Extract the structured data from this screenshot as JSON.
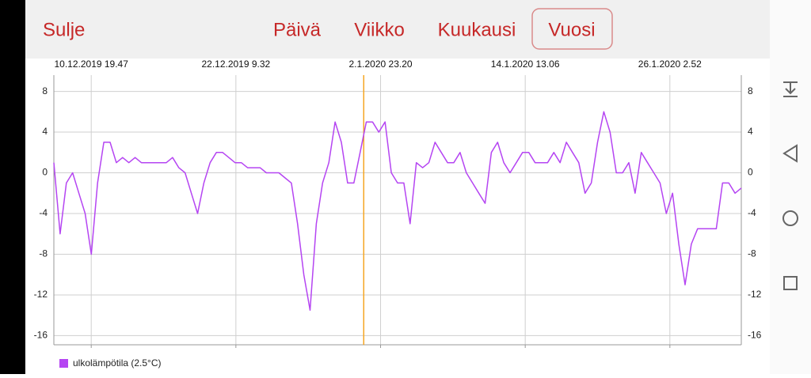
{
  "toolbar": {
    "close": "Sulje",
    "tabs": [
      "Päivä",
      "Viikko",
      "Kuukausi",
      "Vuosi"
    ],
    "selected": 3
  },
  "chart_data": {
    "type": "line",
    "x": [
      "2019-12-07T20:00",
      "2019-12-08T08:00",
      "2019-12-08T20:00",
      "2019-12-09T08:00",
      "2019-12-09T20:00",
      "2019-12-10T08:00",
      "2019-12-10T20:00",
      "2019-12-11T08:00",
      "2019-12-11T20:00",
      "2019-12-12T08:00",
      "2019-12-12T20:00",
      "2019-12-13T08:00",
      "2019-12-13T20:00",
      "2019-12-14T08:00",
      "2019-12-14T20:00",
      "2019-12-15T08:00",
      "2019-12-15T20:00",
      "2019-12-16T08:00",
      "2019-12-16T20:00",
      "2019-12-17T08:00",
      "2019-12-17T20:00",
      "2019-12-18T08:00",
      "2019-12-18T20:00",
      "2019-12-19T08:00",
      "2019-12-19T20:00",
      "2019-12-20T08:00",
      "2019-12-20T20:00",
      "2019-12-21T08:00",
      "2019-12-21T20:00",
      "2019-12-22T08:00",
      "2019-12-22T20:00",
      "2019-12-23T08:00",
      "2019-12-23T20:00",
      "2019-12-24T08:00",
      "2019-12-24T20:00",
      "2019-12-25T08:00",
      "2019-12-25T20:00",
      "2019-12-26T08:00",
      "2019-12-26T20:00",
      "2019-12-27T08:00",
      "2019-12-27T20:00",
      "2019-12-28T08:00",
      "2019-12-28T20:00",
      "2019-12-29T08:00",
      "2019-12-29T20:00",
      "2019-12-30T08:00",
      "2019-12-30T20:00",
      "2019-12-31T08:00",
      "2019-12-31T20:00",
      "2020-01-01T08:00",
      "2020-01-01T20:00",
      "2020-01-02T08:00",
      "2020-01-02T20:00",
      "2020-01-03T08:00",
      "2020-01-03T20:00",
      "2020-01-04T08:00",
      "2020-01-04T20:00",
      "2020-01-05T08:00",
      "2020-01-05T20:00",
      "2020-01-06T08:00",
      "2020-01-06T20:00",
      "2020-01-07T08:00",
      "2020-01-07T20:00",
      "2020-01-08T08:00",
      "2020-01-08T20:00",
      "2020-01-09T08:00",
      "2020-01-09T20:00",
      "2020-01-10T08:00",
      "2020-01-10T20:00",
      "2020-01-11T08:00",
      "2020-01-11T20:00",
      "2020-01-12T08:00",
      "2020-01-12T20:00",
      "2020-01-13T08:00",
      "2020-01-13T20:00",
      "2020-01-14T08:00",
      "2020-01-14T20:00",
      "2020-01-15T08:00",
      "2020-01-15T20:00",
      "2020-01-16T08:00",
      "2020-01-16T20:00",
      "2020-01-17T08:00",
      "2020-01-17T20:00",
      "2020-01-18T08:00",
      "2020-01-18T20:00",
      "2020-01-19T08:00",
      "2020-01-19T20:00",
      "2020-01-20T08:00",
      "2020-01-20T20:00",
      "2020-01-21T08:00",
      "2020-01-21T20:00",
      "2020-01-22T08:00",
      "2020-01-22T20:00",
      "2020-01-23T08:00",
      "2020-01-23T20:00",
      "2020-01-24T08:00",
      "2020-01-24T20:00",
      "2020-01-25T08:00",
      "2020-01-25T20:00",
      "2020-01-26T08:00",
      "2020-01-26T20:00",
      "2020-01-27T08:00",
      "2020-01-27T20:00",
      "2020-01-28T08:00",
      "2020-01-28T20:00",
      "2020-01-29T08:00",
      "2020-01-29T20:00",
      "2020-01-30T08:00",
      "2020-01-30T20:00",
      "2020-01-31T08:00",
      "2020-01-31T20:00"
    ],
    "series": [
      {
        "name": "ulkolämpötila (2.5°C)",
        "color": "#b545f2",
        "values": [
          1,
          -6,
          -1,
          0,
          -2,
          -4,
          -8,
          -1,
          3,
          3,
          1,
          1.5,
          1,
          1.5,
          1,
          1,
          1,
          1,
          1,
          1.5,
          0.5,
          0,
          -2,
          -4,
          -1,
          1,
          2,
          2,
          1.5,
          1,
          1,
          0.5,
          0.5,
          0.5,
          0,
          0,
          0,
          -0.5,
          -1,
          -5,
          -10,
          -13.5,
          -5,
          -1,
          1,
          5,
          3,
          -1,
          -1,
          2,
          5,
          5,
          4,
          5,
          0,
          -1,
          -1,
          -5,
          1,
          0.5,
          1,
          3,
          2,
          1,
          1,
          2,
          0,
          -1,
          -2,
          -3,
          2,
          3,
          1,
          0,
          1,
          2,
          2,
          1,
          1,
          1,
          2,
          1,
          3,
          2,
          1,
          -2,
          -1,
          3,
          6,
          4,
          0,
          0,
          1,
          -2,
          2,
          1,
          0,
          -1,
          -4,
          -2,
          -7,
          -11,
          -7,
          -5.5,
          -5.5,
          -5.5,
          -5.5,
          -1,
          -1,
          -2,
          -1.5
        ]
      }
    ],
    "xlim": [
      "2019-12-07T20:00",
      "2020-01-31T20:00"
    ],
    "xticks": [
      {
        "value": "2019-12-10T19:47",
        "label": "10.12.2019 19.47"
      },
      {
        "value": "2019-12-22T09:32",
        "label": "22.12.2019 9.32"
      },
      {
        "value": "2020-01-02T23:20",
        "label": "2.1.2020 23.20"
      },
      {
        "value": "2020-01-14T13:06",
        "label": "14.1.2020 13.06"
      },
      {
        "value": "2020-01-26T02:52",
        "label": "26.1.2020 2.52"
      }
    ],
    "ylim": [
      -16.9,
      9.6
    ],
    "yticks": [
      -16,
      -12,
      -8,
      -4,
      0,
      4,
      8
    ],
    "grid": true,
    "marker_x": "2020-01-01T15:00",
    "marker_color": "#f5a623"
  }
}
